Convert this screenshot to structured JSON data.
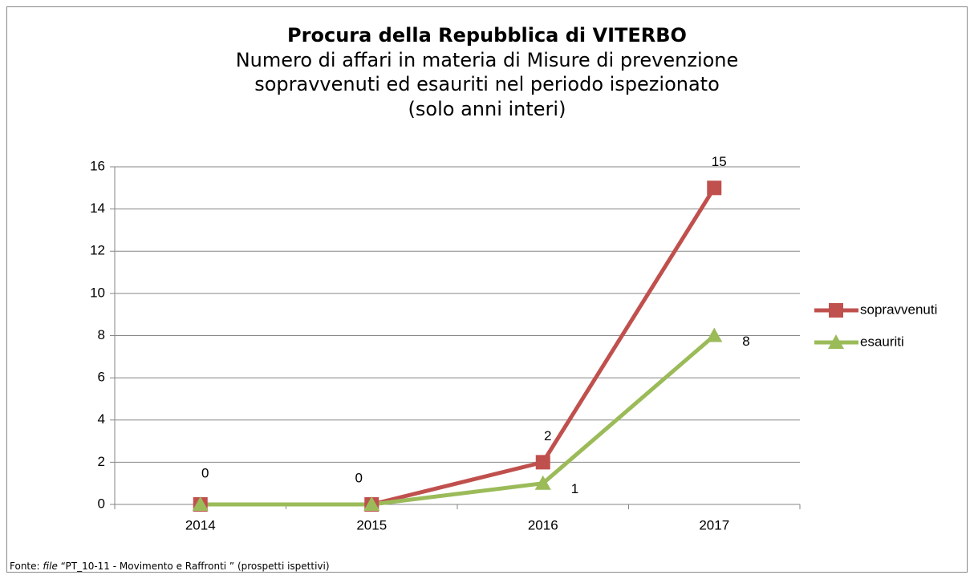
{
  "chart_data": {
    "type": "line",
    "title": "Procura della Repubblica di VITERBO",
    "subtitle": [
      "Numero di affari in materia di Misure di prevenzione",
      "sopravvenuti ed esauriti nel periodo ispezionato",
      "(solo anni interi)"
    ],
    "categories": [
      "2014",
      "2015",
      "2016",
      "2017"
    ],
    "series": [
      {
        "name": "sopravvenuti",
        "color": "#c0504d",
        "marker": "square",
        "values": [
          0,
          0,
          2,
          15
        ]
      },
      {
        "name": "esauriti",
        "color": "#9bbb59",
        "marker": "triangle",
        "values": [
          0,
          0,
          1,
          8
        ]
      }
    ],
    "ylim": [
      0,
      16
    ],
    "yticks": [
      0,
      2,
      4,
      6,
      8,
      10,
      12,
      14,
      16
    ],
    "grid": true,
    "legend": "right",
    "source": {
      "prefix": "Fonte: ",
      "italic": "file",
      "rest": " “PT_10-11 - Movimento e Raffronti ” (prospetti ispettivi)"
    }
  }
}
